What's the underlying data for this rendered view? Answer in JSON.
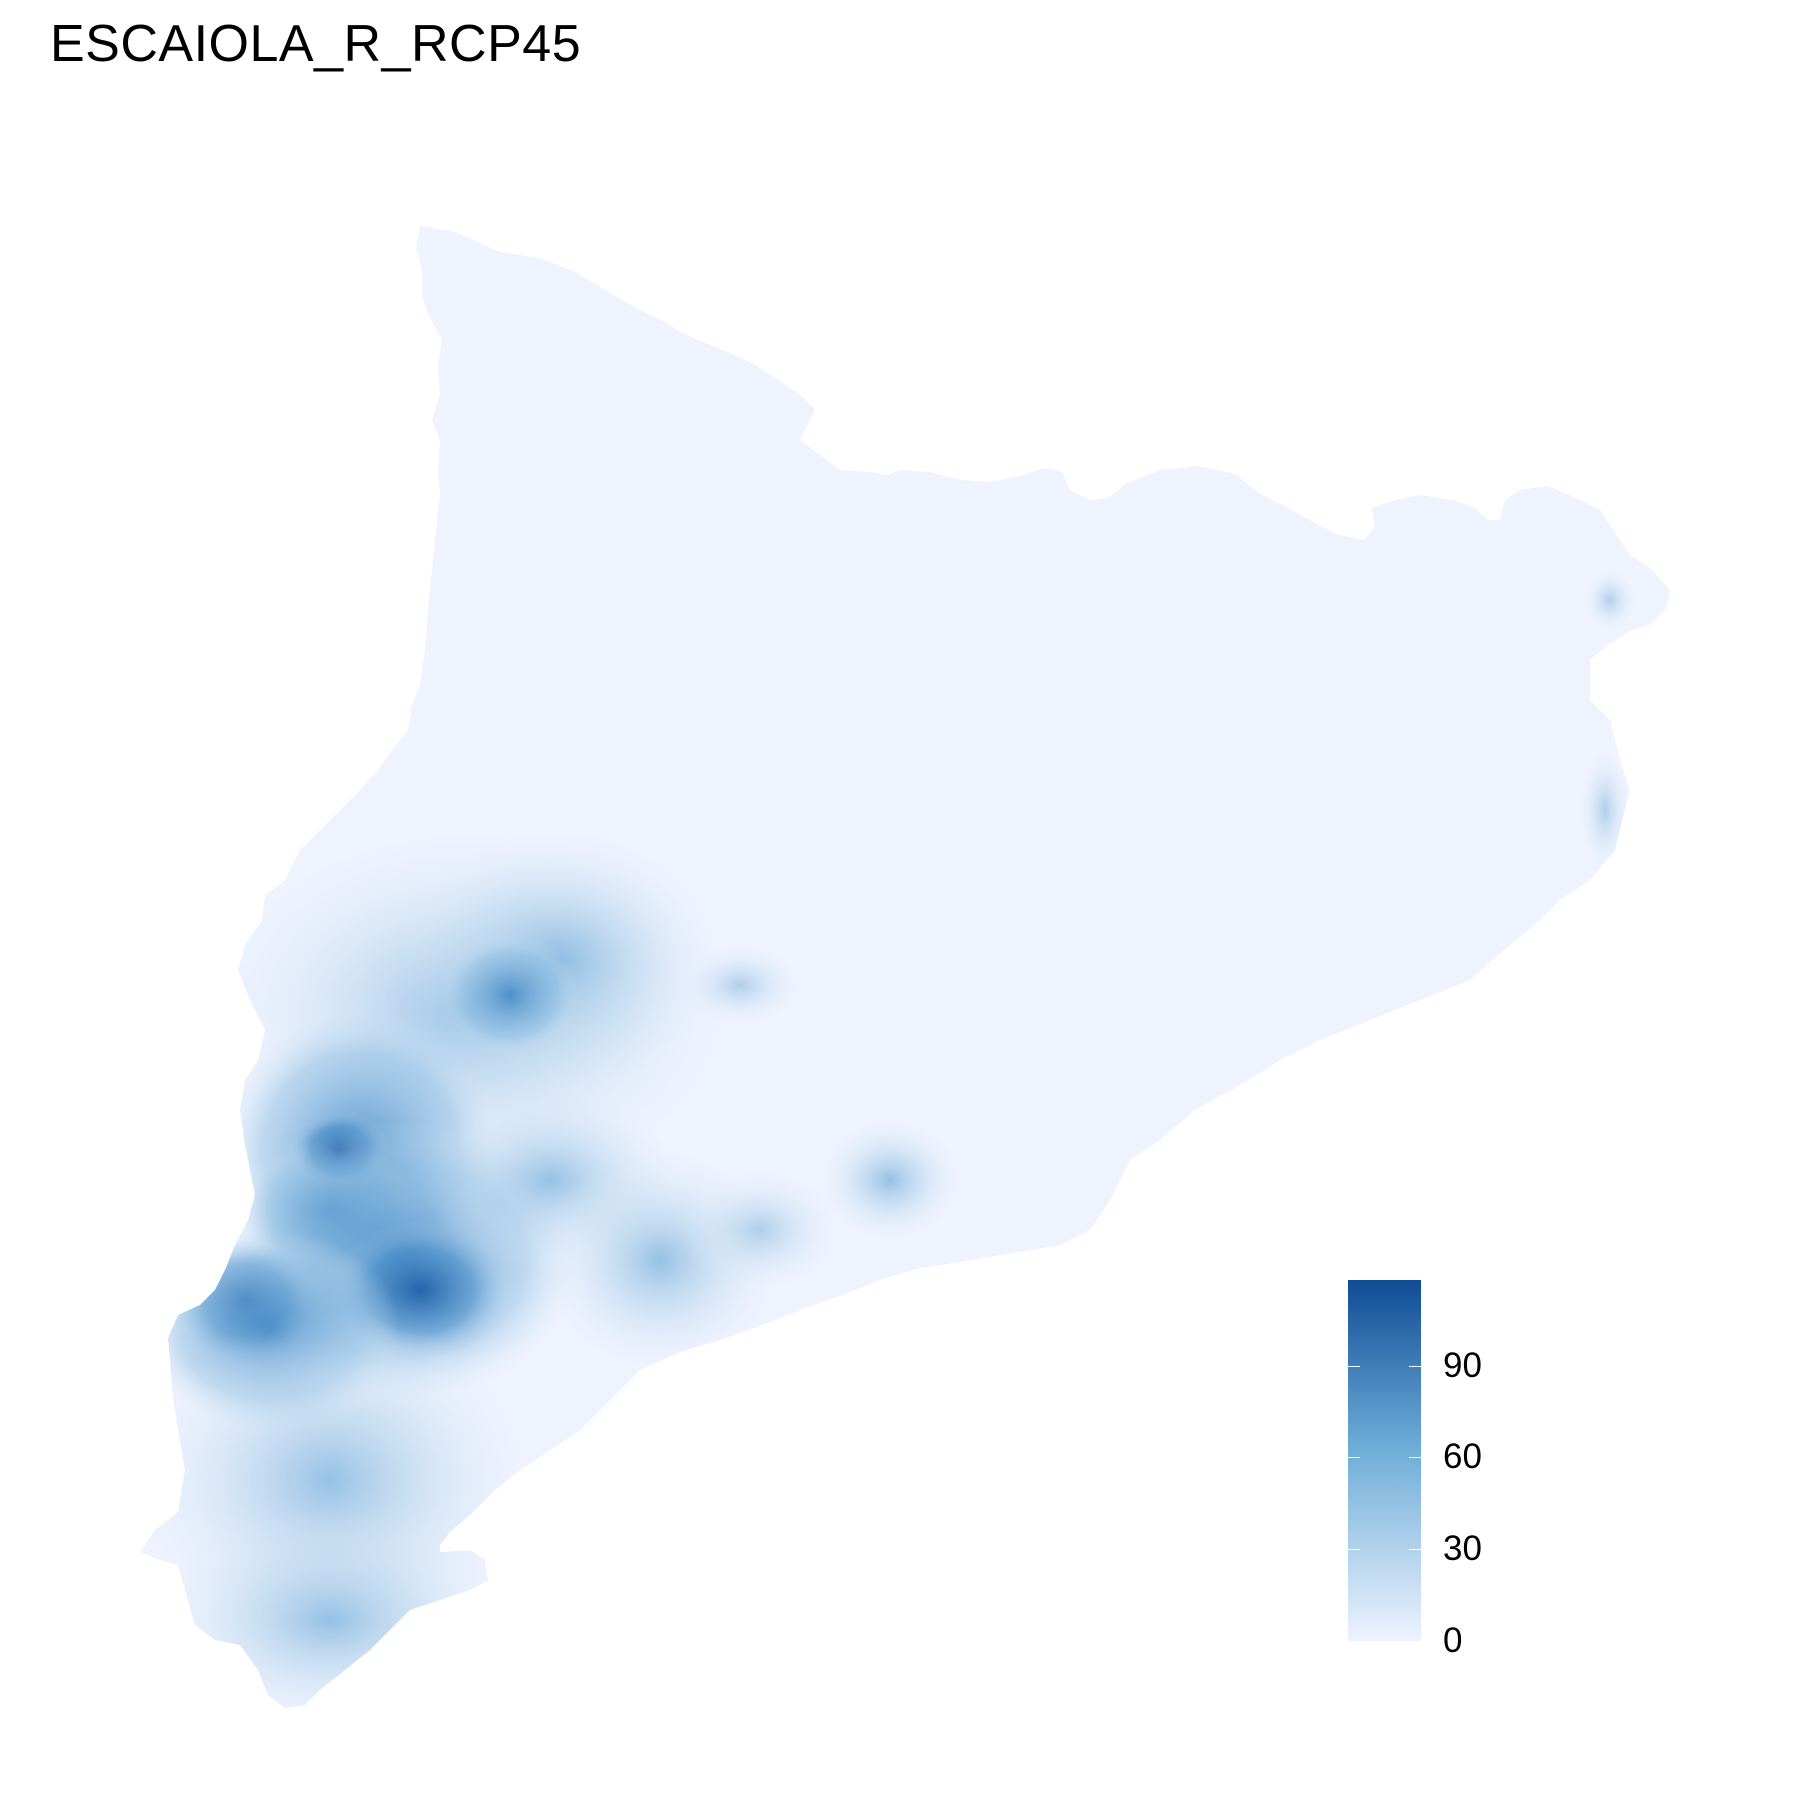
{
  "title": "ESCAIOLA_R_RCP45",
  "legend": {
    "min": 0,
    "max": 118,
    "ticks": [
      {
        "value": 0,
        "label": "0"
      },
      {
        "value": 30,
        "label": "30"
      },
      {
        "value": 60,
        "label": "60"
      },
      {
        "value": 90,
        "label": "90"
      }
    ],
    "colors": {
      "low": "#eef3fe",
      "mid": "#6aaad6",
      "high": "#0f4c96"
    }
  },
  "colors": {
    "land": "#eef3fe",
    "background": "#ffffff"
  }
}
